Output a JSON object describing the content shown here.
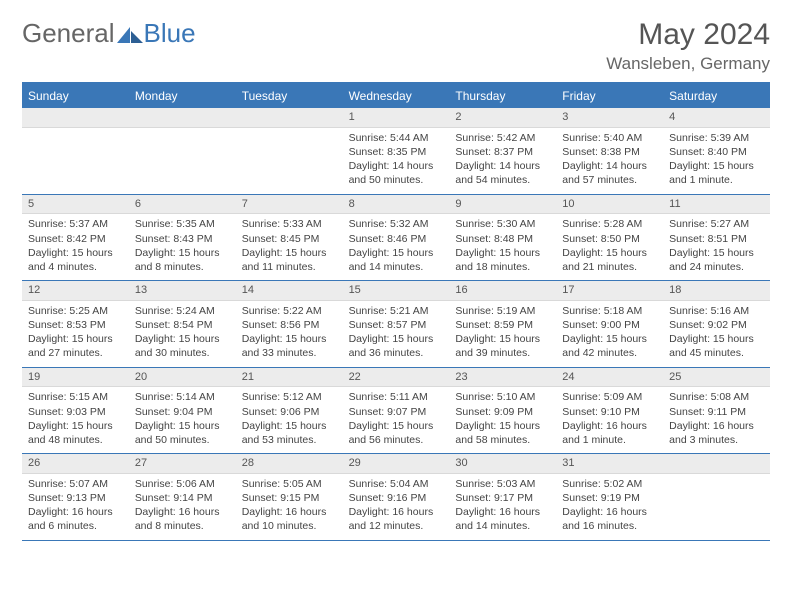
{
  "logo": {
    "text1": "General",
    "text2": "Blue"
  },
  "title": "May 2024",
  "location": "Wansleben, Germany",
  "colors": {
    "brand_blue": "#3a77b7",
    "header_bg": "#3a77b7",
    "daynum_bg": "#ececec",
    "text_muted": "#555",
    "body_text": "#444",
    "page_bg": "#ffffff"
  },
  "day_names": [
    "Sunday",
    "Monday",
    "Tuesday",
    "Wednesday",
    "Thursday",
    "Friday",
    "Saturday"
  ],
  "weeks": [
    [
      {
        "empty": true
      },
      {
        "empty": true
      },
      {
        "empty": true
      },
      {
        "day": "1",
        "sunrise": "Sunrise: 5:44 AM",
        "sunset": "Sunset: 8:35 PM",
        "daylight1": "Daylight: 14 hours",
        "daylight2": "and 50 minutes."
      },
      {
        "day": "2",
        "sunrise": "Sunrise: 5:42 AM",
        "sunset": "Sunset: 8:37 PM",
        "daylight1": "Daylight: 14 hours",
        "daylight2": "and 54 minutes."
      },
      {
        "day": "3",
        "sunrise": "Sunrise: 5:40 AM",
        "sunset": "Sunset: 8:38 PM",
        "daylight1": "Daylight: 14 hours",
        "daylight2": "and 57 minutes."
      },
      {
        "day": "4",
        "sunrise": "Sunrise: 5:39 AM",
        "sunset": "Sunset: 8:40 PM",
        "daylight1": "Daylight: 15 hours",
        "daylight2": "and 1 minute."
      }
    ],
    [
      {
        "day": "5",
        "sunrise": "Sunrise: 5:37 AM",
        "sunset": "Sunset: 8:42 PM",
        "daylight1": "Daylight: 15 hours",
        "daylight2": "and 4 minutes."
      },
      {
        "day": "6",
        "sunrise": "Sunrise: 5:35 AM",
        "sunset": "Sunset: 8:43 PM",
        "daylight1": "Daylight: 15 hours",
        "daylight2": "and 8 minutes."
      },
      {
        "day": "7",
        "sunrise": "Sunrise: 5:33 AM",
        "sunset": "Sunset: 8:45 PM",
        "daylight1": "Daylight: 15 hours",
        "daylight2": "and 11 minutes."
      },
      {
        "day": "8",
        "sunrise": "Sunrise: 5:32 AM",
        "sunset": "Sunset: 8:46 PM",
        "daylight1": "Daylight: 15 hours",
        "daylight2": "and 14 minutes."
      },
      {
        "day": "9",
        "sunrise": "Sunrise: 5:30 AM",
        "sunset": "Sunset: 8:48 PM",
        "daylight1": "Daylight: 15 hours",
        "daylight2": "and 18 minutes."
      },
      {
        "day": "10",
        "sunrise": "Sunrise: 5:28 AM",
        "sunset": "Sunset: 8:50 PM",
        "daylight1": "Daylight: 15 hours",
        "daylight2": "and 21 minutes."
      },
      {
        "day": "11",
        "sunrise": "Sunrise: 5:27 AM",
        "sunset": "Sunset: 8:51 PM",
        "daylight1": "Daylight: 15 hours",
        "daylight2": "and 24 minutes."
      }
    ],
    [
      {
        "day": "12",
        "sunrise": "Sunrise: 5:25 AM",
        "sunset": "Sunset: 8:53 PM",
        "daylight1": "Daylight: 15 hours",
        "daylight2": "and 27 minutes."
      },
      {
        "day": "13",
        "sunrise": "Sunrise: 5:24 AM",
        "sunset": "Sunset: 8:54 PM",
        "daylight1": "Daylight: 15 hours",
        "daylight2": "and 30 minutes."
      },
      {
        "day": "14",
        "sunrise": "Sunrise: 5:22 AM",
        "sunset": "Sunset: 8:56 PM",
        "daylight1": "Daylight: 15 hours",
        "daylight2": "and 33 minutes."
      },
      {
        "day": "15",
        "sunrise": "Sunrise: 5:21 AM",
        "sunset": "Sunset: 8:57 PM",
        "daylight1": "Daylight: 15 hours",
        "daylight2": "and 36 minutes."
      },
      {
        "day": "16",
        "sunrise": "Sunrise: 5:19 AM",
        "sunset": "Sunset: 8:59 PM",
        "daylight1": "Daylight: 15 hours",
        "daylight2": "and 39 minutes."
      },
      {
        "day": "17",
        "sunrise": "Sunrise: 5:18 AM",
        "sunset": "Sunset: 9:00 PM",
        "daylight1": "Daylight: 15 hours",
        "daylight2": "and 42 minutes."
      },
      {
        "day": "18",
        "sunrise": "Sunrise: 5:16 AM",
        "sunset": "Sunset: 9:02 PM",
        "daylight1": "Daylight: 15 hours",
        "daylight2": "and 45 minutes."
      }
    ],
    [
      {
        "day": "19",
        "sunrise": "Sunrise: 5:15 AM",
        "sunset": "Sunset: 9:03 PM",
        "daylight1": "Daylight: 15 hours",
        "daylight2": "and 48 minutes."
      },
      {
        "day": "20",
        "sunrise": "Sunrise: 5:14 AM",
        "sunset": "Sunset: 9:04 PM",
        "daylight1": "Daylight: 15 hours",
        "daylight2": "and 50 minutes."
      },
      {
        "day": "21",
        "sunrise": "Sunrise: 5:12 AM",
        "sunset": "Sunset: 9:06 PM",
        "daylight1": "Daylight: 15 hours",
        "daylight2": "and 53 minutes."
      },
      {
        "day": "22",
        "sunrise": "Sunrise: 5:11 AM",
        "sunset": "Sunset: 9:07 PM",
        "daylight1": "Daylight: 15 hours",
        "daylight2": "and 56 minutes."
      },
      {
        "day": "23",
        "sunrise": "Sunrise: 5:10 AM",
        "sunset": "Sunset: 9:09 PM",
        "daylight1": "Daylight: 15 hours",
        "daylight2": "and 58 minutes."
      },
      {
        "day": "24",
        "sunrise": "Sunrise: 5:09 AM",
        "sunset": "Sunset: 9:10 PM",
        "daylight1": "Daylight: 16 hours",
        "daylight2": "and 1 minute."
      },
      {
        "day": "25",
        "sunrise": "Sunrise: 5:08 AM",
        "sunset": "Sunset: 9:11 PM",
        "daylight1": "Daylight: 16 hours",
        "daylight2": "and 3 minutes."
      }
    ],
    [
      {
        "day": "26",
        "sunrise": "Sunrise: 5:07 AM",
        "sunset": "Sunset: 9:13 PM",
        "daylight1": "Daylight: 16 hours",
        "daylight2": "and 6 minutes."
      },
      {
        "day": "27",
        "sunrise": "Sunrise: 5:06 AM",
        "sunset": "Sunset: 9:14 PM",
        "daylight1": "Daylight: 16 hours",
        "daylight2": "and 8 minutes."
      },
      {
        "day": "28",
        "sunrise": "Sunrise: 5:05 AM",
        "sunset": "Sunset: 9:15 PM",
        "daylight1": "Daylight: 16 hours",
        "daylight2": "and 10 minutes."
      },
      {
        "day": "29",
        "sunrise": "Sunrise: 5:04 AM",
        "sunset": "Sunset: 9:16 PM",
        "daylight1": "Daylight: 16 hours",
        "daylight2": "and 12 minutes."
      },
      {
        "day": "30",
        "sunrise": "Sunrise: 5:03 AM",
        "sunset": "Sunset: 9:17 PM",
        "daylight1": "Daylight: 16 hours",
        "daylight2": "and 14 minutes."
      },
      {
        "day": "31",
        "sunrise": "Sunrise: 5:02 AM",
        "sunset": "Sunset: 9:19 PM",
        "daylight1": "Daylight: 16 hours",
        "daylight2": "and 16 minutes."
      },
      {
        "empty": true
      }
    ]
  ]
}
